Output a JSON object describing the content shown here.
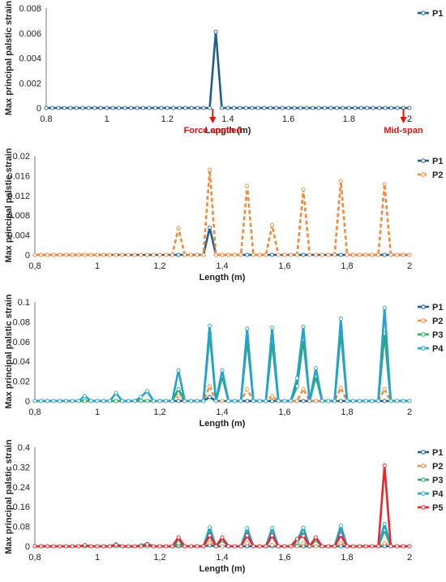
{
  "colors": {
    "P1": "#1f5f8b",
    "P2": "#f28a3c",
    "P3": "#2eab62",
    "P4": "#25a3d0",
    "P5": "#e8262b",
    "annotation": "#e3120b"
  },
  "chart_data": [
    {
      "type": "line",
      "xlabel": "Length (m)",
      "ylabel": "Max principal palstic strain",
      "xlim": [
        0.8,
        2
      ],
      "ylim": [
        0,
        0.008
      ],
      "x_ticks": [
        "0.8",
        "1",
        "1.2",
        "1.4",
        "1.6",
        "1.8",
        "2"
      ],
      "y_ticks": [
        "0",
        "0.002",
        "0.004",
        "0.006",
        "0.008"
      ],
      "legend": "top-right",
      "annotations": [
        {
          "text": "Force applied",
          "x": 1.35
        },
        {
          "text": "Mid-span",
          "x": 1.98
        }
      ],
      "series": [
        {
          "name": "P1",
          "color_key": "P1",
          "dashed": false,
          "peaks": [
            [
              1.36,
              0.0061
            ]
          ]
        }
      ]
    },
    {
      "type": "line",
      "xlabel": "Length (m)",
      "ylabel": "Max principal palstic strain",
      "xlim": [
        0.8,
        2
      ],
      "ylim": [
        0,
        0.02
      ],
      "x_ticks": [
        "0,8",
        "1",
        "1,2",
        "1,4",
        "1,6",
        "1,8",
        "2"
      ],
      "y_ticks": [
        "0",
        "0.004",
        "0.008",
        "0.012",
        "0.016",
        "0.02"
      ],
      "legend": "top-right",
      "series": [
        {
          "name": "P1",
          "color_key": "P1",
          "dashed": false,
          "peaks": [
            [
              1.36,
              0.0055
            ]
          ]
        },
        {
          "name": "P2",
          "color_key": "P2",
          "dashed": true,
          "peaks": [
            [
              1.26,
              0.0054
            ],
            [
              1.36,
              0.0172
            ],
            [
              1.48,
              0.0139
            ],
            [
              1.56,
              0.006
            ],
            [
              1.66,
              0.0132
            ],
            [
              1.78,
              0.0149
            ],
            [
              1.92,
              0.0143
            ]
          ]
        }
      ]
    },
    {
      "type": "line",
      "xlabel": "Length (m)",
      "ylabel": "Max principal palstic strain",
      "xlim": [
        0.8,
        2
      ],
      "ylim": [
        0,
        0.1
      ],
      "x_ticks": [
        "0,8",
        "1",
        "1,2",
        "1,4",
        "1,6",
        "1,8",
        "2"
      ],
      "y_ticks": [
        "0",
        "0.02",
        "0.04",
        "0.06",
        "0.08",
        "0.1"
      ],
      "legend": "top-right",
      "series": [
        {
          "name": "P1",
          "color_key": "P1",
          "dashed": false,
          "peaks": [
            [
              1.36,
              0.004
            ]
          ]
        },
        {
          "name": "P2",
          "color_key": "P2",
          "dashed": true,
          "peaks": [
            [
              1.26,
              0.005
            ],
            [
              1.36,
              0.015
            ],
            [
              1.48,
              0.012
            ],
            [
              1.56,
              0.005
            ],
            [
              1.66,
              0.012
            ],
            [
              1.78,
              0.013
            ],
            [
              1.92,
              0.012
            ]
          ]
        },
        {
          "name": "P3",
          "color_key": "P3",
          "dashed": false,
          "peaks": [
            [
              1.26,
              0.012
            ],
            [
              1.36,
              0.068
            ],
            [
              1.4,
              0.025
            ],
            [
              1.48,
              0.062
            ],
            [
              1.56,
              0.06
            ],
            [
              1.64,
              0.015
            ],
            [
              1.66,
              0.062
            ],
            [
              1.7,
              0.025
            ],
            [
              1.78,
              0.07
            ],
            [
              1.92,
              0.068
            ]
          ]
        },
        {
          "name": "P4",
          "color_key": "P4",
          "dashed": false,
          "peaks": [
            [
              0.96,
              0.005
            ],
            [
              1.06,
              0.008
            ],
            [
              1.14,
              0.004
            ],
            [
              1.16,
              0.01
            ],
            [
              1.26,
              0.031
            ],
            [
              1.36,
              0.076
            ],
            [
              1.4,
              0.031
            ],
            [
              1.48,
              0.073
            ],
            [
              1.56,
              0.074
            ],
            [
              1.64,
              0.023
            ],
            [
              1.66,
              0.075
            ],
            [
              1.7,
              0.033
            ],
            [
              1.78,
              0.083
            ],
            [
              1.92,
              0.094
            ]
          ]
        }
      ]
    },
    {
      "type": "line",
      "xlabel": "Length (m)",
      "ylabel": "Max principal palstic strain",
      "xlim": [
        0.8,
        2
      ],
      "ylim": [
        0,
        0.4
      ],
      "x_ticks": [
        "0,8",
        "1",
        "1,2",
        "1,4",
        "1,6",
        "1,8",
        "2"
      ],
      "y_ticks": [
        "0",
        "0.08",
        "0.16",
        "0.24",
        "0.32",
        "0.4"
      ],
      "legend": "top-right",
      "series": [
        {
          "name": "P1",
          "color_key": "P1",
          "dashed": false,
          "peaks": [
            [
              1.36,
              0.004
            ]
          ]
        },
        {
          "name": "P2",
          "color_key": "P2",
          "dashed": true,
          "peaks": [
            [
              1.26,
              0.005
            ],
            [
              1.36,
              0.015
            ],
            [
              1.48,
              0.012
            ],
            [
              1.56,
              0.005
            ],
            [
              1.66,
              0.012
            ],
            [
              1.78,
              0.013
            ],
            [
              1.92,
              0.012
            ]
          ]
        },
        {
          "name": "P3",
          "color_key": "P3",
          "dashed": false,
          "peaks": [
            [
              1.26,
              0.012
            ],
            [
              1.36,
              0.065
            ],
            [
              1.4,
              0.025
            ],
            [
              1.48,
              0.062
            ],
            [
              1.56,
              0.06
            ],
            [
              1.64,
              0.015
            ],
            [
              1.66,
              0.06
            ],
            [
              1.7,
              0.025
            ],
            [
              1.78,
              0.07
            ],
            [
              1.92,
              0.066
            ]
          ]
        },
        {
          "name": "P4",
          "color_key": "P4",
          "dashed": false,
          "peaks": [
            [
              0.96,
              0.005
            ],
            [
              1.06,
              0.008
            ],
            [
              1.14,
              0.004
            ],
            [
              1.16,
              0.01
            ],
            [
              1.26,
              0.031
            ],
            [
              1.36,
              0.076
            ],
            [
              1.4,
              0.031
            ],
            [
              1.48,
              0.073
            ],
            [
              1.56,
              0.074
            ],
            [
              1.64,
              0.023
            ],
            [
              1.66,
              0.075
            ],
            [
              1.7,
              0.033
            ],
            [
              1.78,
              0.083
            ],
            [
              1.92,
              0.09
            ]
          ]
        },
        {
          "name": "P5",
          "color_key": "P5",
          "dashed": false,
          "peaks": [
            [
              0.96,
              0.004
            ],
            [
              1.06,
              0.006
            ],
            [
              1.16,
              0.008
            ],
            [
              1.26,
              0.036
            ],
            [
              1.36,
              0.044
            ],
            [
              1.4,
              0.036
            ],
            [
              1.48,
              0.044
            ],
            [
              1.56,
              0.044
            ],
            [
              1.64,
              0.03
            ],
            [
              1.66,
              0.042
            ],
            [
              1.7,
              0.036
            ],
            [
              1.78,
              0.046
            ],
            [
              1.92,
              0.326
            ]
          ]
        }
      ]
    }
  ]
}
